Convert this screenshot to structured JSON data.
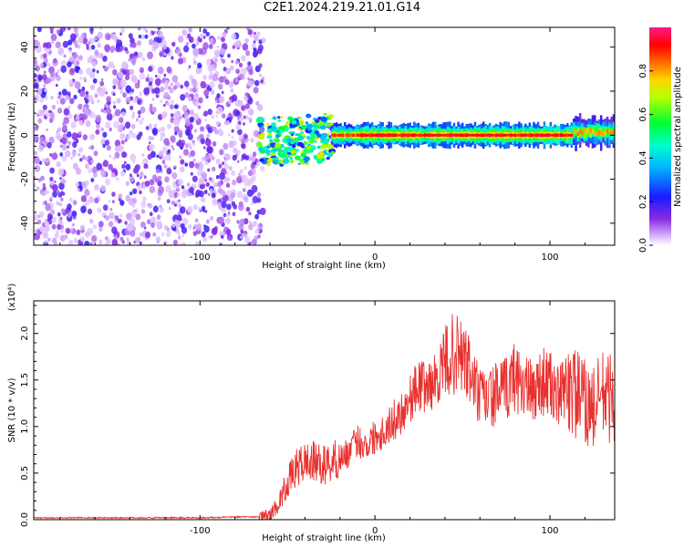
{
  "figure": {
    "title": "C2E1.2024.219.21.01.G14"
  },
  "chart_data": [
    {
      "type": "heatmap",
      "xlabel": "Height of straight line (km)",
      "ylabel": "Frequency (Hz)",
      "xlim": [
        -195,
        137
      ],
      "ylim": [
        -50,
        49
      ],
      "xticks": [
        -100,
        0,
        100
      ],
      "yticks": [
        -40,
        -20,
        0,
        20,
        40
      ],
      "grid": false,
      "colorbar": {
        "label": "Normalized spectral amplitude",
        "range": [
          0.0,
          1.0
        ],
        "ticks": [
          "0.0",
          "0.2",
          "0.4",
          "0.6",
          "0.8"
        ],
        "tick_values": [
          0.0,
          0.2,
          0.4,
          0.6,
          0.8
        ],
        "colormap": "rainbow (white, purple, blue, cyan, green, yellow, orange, red, magenta)"
      },
      "description_regions": [
        {
          "x_range": [
            -195,
            -65
          ],
          "freq_range": [
            -50,
            49
          ],
          "amplitude": "low, scattered noise (purple)"
        },
        {
          "x_range": [
            -65,
            -25
          ],
          "freq_range": [
            -15,
            10
          ],
          "amplitude": "mixed 0.3-0.9, broad"
        },
        {
          "x_range": [
            -25,
            125
          ],
          "freq_range": [
            -3,
            3
          ],
          "amplitude": "high 0.8-1.0 along 0 Hz"
        },
        {
          "x_range": [
            115,
            137
          ],
          "freq_range": [
            -5,
            6
          ],
          "amplitude": "medium 0.4-0.8"
        }
      ]
    },
    {
      "type": "line",
      "xlabel": "Height of straight line (km)",
      "ylabel": "SNR (10 * v/v)",
      "y_multiplier": "(x10⁴)",
      "xlim": [
        -195,
        137
      ],
      "ylim": [
        0.0,
        2.35
      ],
      "xticks": [
        -100,
        0,
        100
      ],
      "yticks": [
        0.0,
        0.5,
        1.0,
        1.5,
        2.0
      ],
      "ytick_labels": [
        "0.0",
        "0.5",
        "1.0",
        "1.5",
        "2.0"
      ],
      "grid": false,
      "series": [
        {
          "color": "#e8312f",
          "x": [
            -195,
            -180,
            -160,
            -140,
            -120,
            -100,
            -80,
            -66,
            -60,
            -55,
            -50,
            -45,
            -40,
            -35,
            -30,
            -25,
            -20,
            -15,
            -10,
            -5,
            0,
            5,
            10,
            15,
            20,
            25,
            30,
            35,
            40,
            45,
            50,
            55,
            60,
            65,
            70,
            75,
            80,
            85,
            90,
            95,
            100,
            105,
            110,
            115,
            120,
            125,
            130,
            135,
            137
          ],
          "y": [
            0.02,
            0.02,
            0.02,
            0.02,
            0.02,
            0.02,
            0.03,
            0.03,
            0.05,
            0.18,
            0.4,
            0.55,
            0.62,
            0.62,
            0.58,
            0.62,
            0.66,
            0.72,
            0.85,
            0.8,
            0.9,
            0.95,
            1.05,
            1.15,
            1.3,
            1.45,
            1.42,
            1.5,
            1.7,
            1.78,
            1.75,
            1.55,
            1.3,
            1.3,
            1.35,
            1.4,
            1.55,
            1.45,
            1.35,
            1.5,
            1.45,
            1.3,
            1.45,
            1.35,
            1.25,
            1.2,
            1.35,
            1.3,
            1.2
          ]
        }
      ]
    }
  ]
}
